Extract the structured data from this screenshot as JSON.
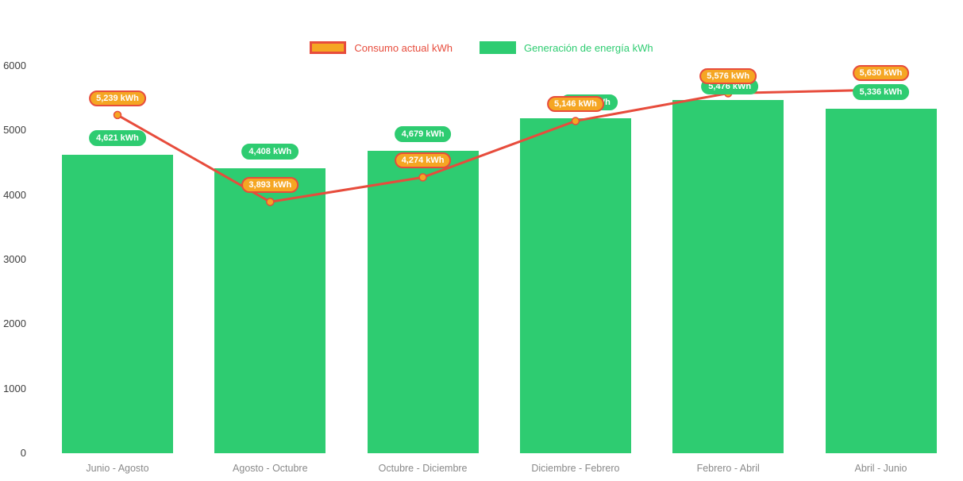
{
  "colors": {
    "background": "#ffffff",
    "bar": "#2ecc71",
    "line": "#e74c3c",
    "marker_fill": "#f5a623",
    "consumo_badge_bg": "#f5a623",
    "y_axis_text": "#3d3d3d",
    "x_axis_text": "#8a8a8a"
  },
  "legend": {
    "position": "top-center",
    "items": [
      {
        "label": "Consumo actual kWh"
      },
      {
        "label": "Generación de energía kWh"
      }
    ]
  },
  "chart_data": {
    "type": "bar+line",
    "title": "",
    "categories": [
      "Junio - Agosto",
      "Agosto - Octubre",
      "Octubre - Diciembre",
      "Diciembre - Febrero",
      "Febrero - Abril",
      "Abril - Junio"
    ],
    "series": [
      {
        "name": "Consumo actual kWh",
        "type": "line",
        "color": "#e74c3c",
        "values": [
          5239,
          3893,
          4274,
          5146,
          5576,
          5630
        ],
        "labels": [
          "5,239 kWh",
          "3,893 kWh",
          "4,274 kWh",
          "5,146 kWh",
          "5,576 kWh",
          "5,630 kWh"
        ]
      },
      {
        "name": "Generación de energía kWh",
        "type": "bar",
        "color": "#2ecc71",
        "values": [
          4621,
          4408,
          4679,
          5190,
          5476,
          5336
        ],
        "labels": [
          "4,621 kWh",
          "4,408 kWh",
          "4,679 kWh",
          "5,190 kWh",
          "5,476 kWh",
          "5,336 kWh"
        ]
      }
    ],
    "y_ticks": [
      0,
      1000,
      2000,
      3000,
      4000,
      5000,
      6000
    ],
    "ylim": [
      0,
      6000
    ],
    "grid": false,
    "legend_position": "top-center"
  }
}
